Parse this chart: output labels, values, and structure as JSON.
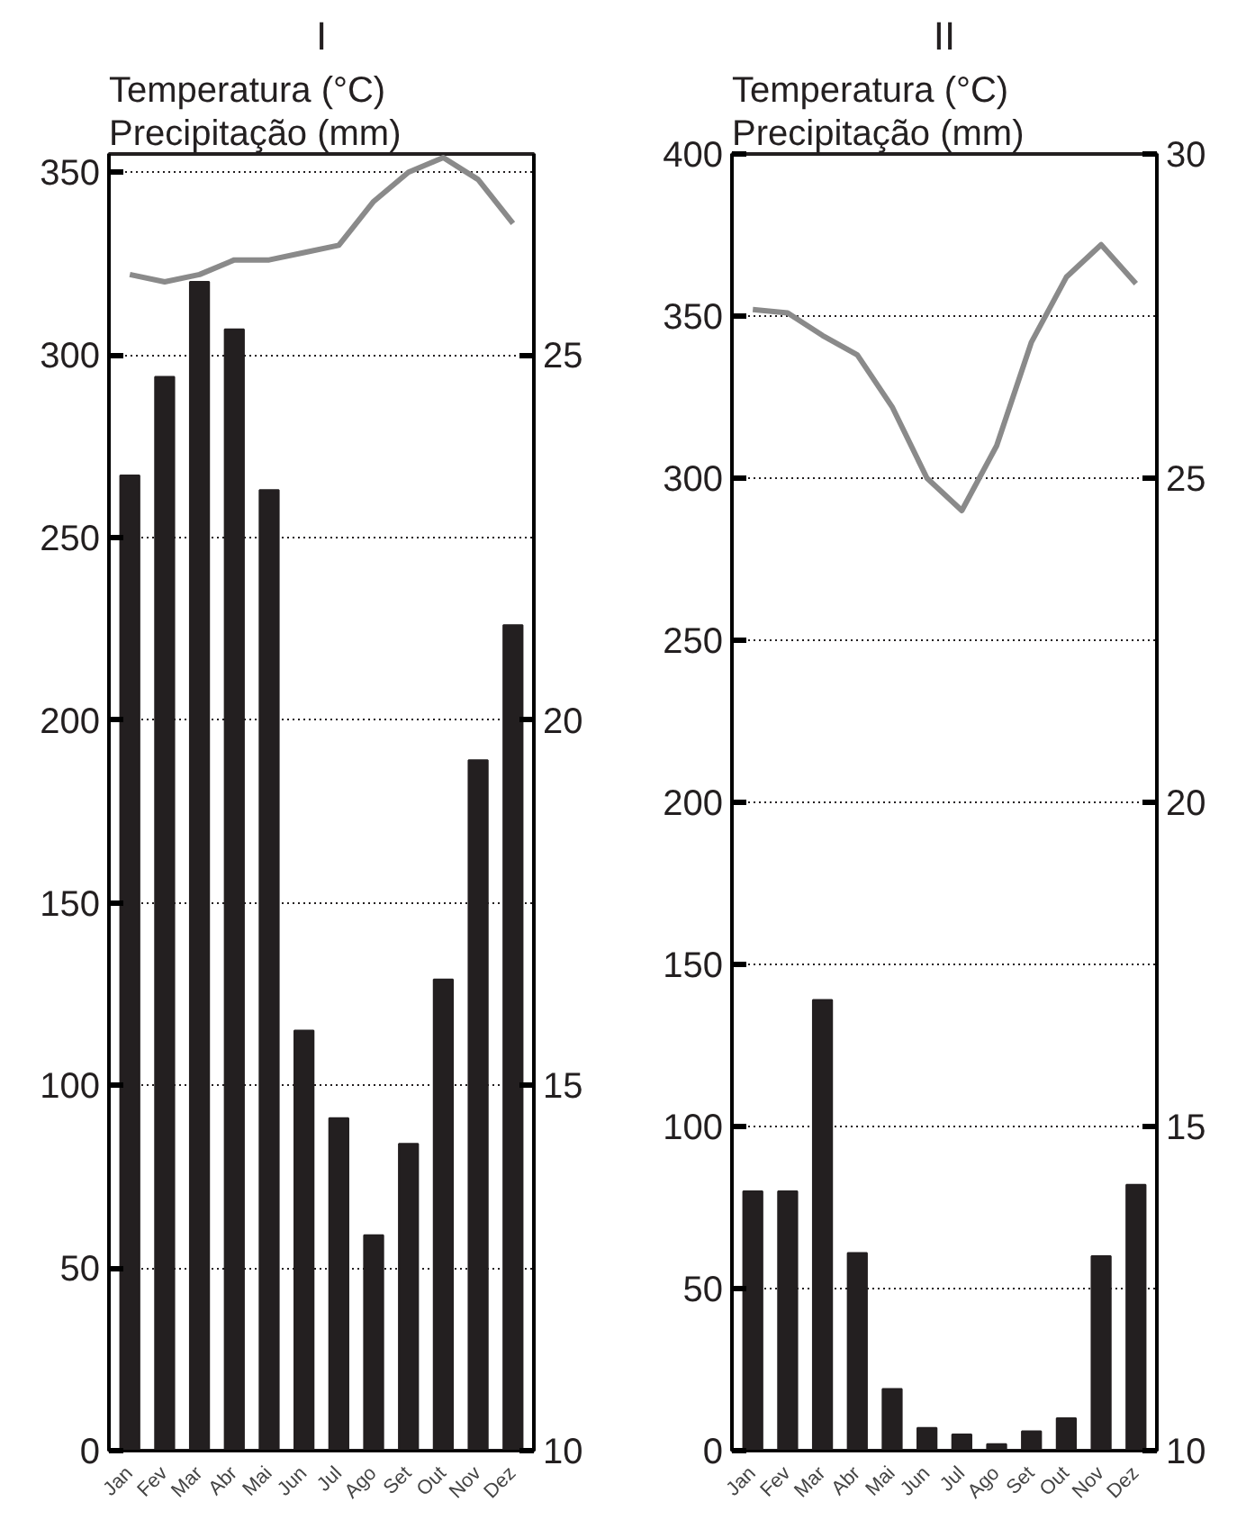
{
  "chart_data": [
    {
      "type": "bar",
      "title": "I",
      "annotations": [
        "Temperatura (°C)",
        "Precipitação (mm)"
      ],
      "categories": [
        "Jan",
        "Fev",
        "Mar",
        "Abr",
        "Mai",
        "Jun",
        "Jul",
        "Ago",
        "Set",
        "Out",
        "Nov",
        "Dez"
      ],
      "series": [
        {
          "color": "#231f20",
          "values": [
            267,
            294,
            320,
            307,
            263,
            115,
            91,
            59,
            84,
            129,
            189,
            226
          ]
        },
        {
          "type": "line",
          "axis": "y2",
          "color": "#8a8a8a",
          "values": [
            26.1,
            26.0,
            26.1,
            26.3,
            26.3,
            26.4,
            26.5,
            27.1,
            27.5,
            27.7,
            27.4,
            26.8
          ]
        }
      ],
      "ylim": [
        0,
        355
      ],
      "yticks": [
        0,
        50,
        100,
        150,
        200,
        250,
        300,
        350
      ],
      "y2lim": [
        10,
        27.75
      ],
      "y2ticks": [
        10,
        15,
        20,
        25
      ],
      "grid": "y"
    },
    {
      "type": "bar",
      "title": "II",
      "annotations": [
        "Temperatura (°C)",
        "Precipitação (mm)"
      ],
      "categories": [
        "Jan",
        "Fev",
        "Mar",
        "Abr",
        "Mai",
        "Jun",
        "Jul",
        "Ago",
        "Set",
        "Out",
        "Nov",
        "Dez"
      ],
      "series": [
        {
          "color": "#231f20",
          "values": [
            80,
            80,
            139,
            61,
            19,
            7,
            5,
            2,
            6,
            10,
            60,
            82
          ]
        },
        {
          "type": "line",
          "axis": "y2",
          "color": "#8a8a8a",
          "values": [
            27.6,
            27.55,
            27.2,
            26.9,
            26.1,
            25.0,
            24.5,
            25.5,
            27.1,
            28.1,
            28.6,
            28.0
          ]
        }
      ],
      "ylim": [
        0,
        400
      ],
      "yticks": [
        0,
        50,
        100,
        150,
        200,
        250,
        300,
        350,
        400
      ],
      "y2lim": [
        10,
        30
      ],
      "y2ticks": [
        10,
        15,
        20,
        25,
        30
      ],
      "grid": "y"
    }
  ]
}
